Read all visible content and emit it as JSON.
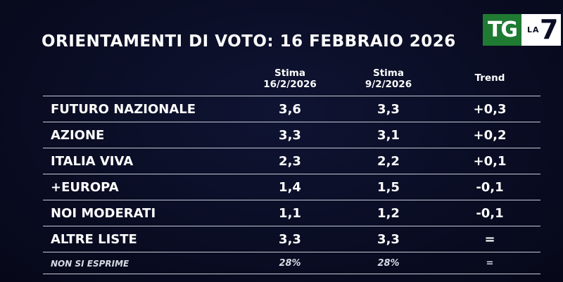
{
  "title": "ORIENTAMENTI DI VOTO: 16 FEBBRAIO 2026",
  "logo": {
    "tg": "TG",
    "la": "LA",
    "seven": "7"
  },
  "columns": {
    "col1_line1": "Stima",
    "col1_line2": "16/2/2026",
    "col2_line1": "Stima",
    "col2_line2": "9/2/2026",
    "col3": "Trend"
  },
  "rows": [
    {
      "name": "FUTURO NAZIONALE",
      "current": "3,6",
      "previous": "3,3",
      "trend": "+0,3"
    },
    {
      "name": "AZIONE",
      "current": "3,3",
      "previous": "3,1",
      "trend": "+0,2"
    },
    {
      "name": "ITALIA VIVA",
      "current": "2,3",
      "previous": "2,2",
      "trend": "+0,1"
    },
    {
      "name": "+EUROPA",
      "current": "1,4",
      "previous": "1,5",
      "trend": "-0,1"
    },
    {
      "name": "NOI MODERATI",
      "current": "1,1",
      "previous": "1,2",
      "trend": "-0,1"
    },
    {
      "name": "ALTRE LISTE",
      "current": "3,3",
      "previous": "3,3",
      "trend": "="
    },
    {
      "name": "NON SI ESPRIME",
      "current": "28%",
      "previous": "28%",
      "trend": "="
    }
  ]
}
